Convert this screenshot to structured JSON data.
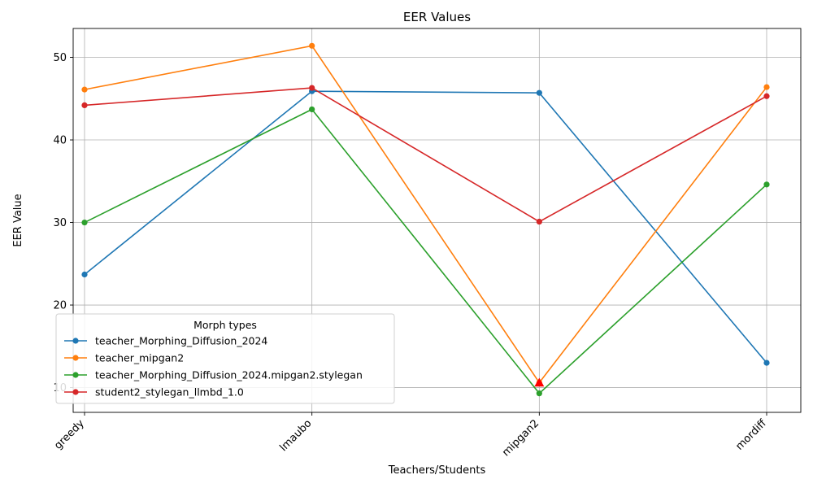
{
  "chart_data": {
    "type": "line",
    "title": "EER Values",
    "xlabel": "Teachers/Students",
    "ylabel": "EER Value",
    "categories": [
      "greedy",
      "lmaubo",
      "mipgan2",
      "mordiff"
    ],
    "ylim": [
      7,
      53.5
    ],
    "yticks": [
      10,
      20,
      30,
      40,
      50
    ],
    "grid": true,
    "legend": {
      "title": "Morph types",
      "placement": "lower-left"
    },
    "series": [
      {
        "name": "teacher_Morphing_Diffusion_2024",
        "color": "#1f77b4",
        "values": [
          23.7,
          45.9,
          45.7,
          13.0
        ]
      },
      {
        "name": "teacher_mipgan2",
        "color": "#ff7f0e",
        "values": [
          46.1,
          51.4,
          10.6,
          46.4
        ]
      },
      {
        "name": "teacher_Morphing_Diffusion_2024.mipgan2.stylegan",
        "color": "#2ca02c",
        "values": [
          30.0,
          43.7,
          9.3,
          34.6
        ]
      },
      {
        "name": "student2_stylegan_llmbd_1.0",
        "color": "#d62728",
        "values": [
          44.2,
          46.3,
          30.1,
          45.3
        ]
      }
    ],
    "marker": {
      "category_index": 2,
      "value": 10.6,
      "shape": "triangle",
      "color": "#ff0000"
    }
  }
}
